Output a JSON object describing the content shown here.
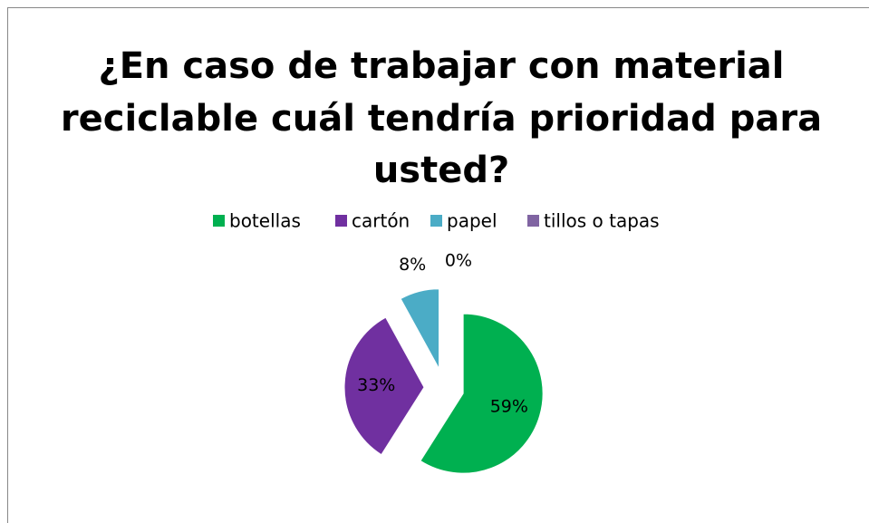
{
  "chart_data": {
    "type": "pie",
    "title": "¿En caso de trabajar con material reciclable cuál tendría prioridad para usted?",
    "title_lines": [
      "¿En caso de trabajar con material",
      "reciclable cuál tendría prioridad para",
      "usted?"
    ],
    "categories": [
      "botellas",
      "cartón",
      "papel",
      "tillos o tapas"
    ],
    "values": [
      59,
      33,
      8,
      0
    ],
    "value_labels": [
      "59%",
      "33%",
      "8%",
      "0%"
    ],
    "colors": [
      "#00b050",
      "#7030a0",
      "#4bacc6",
      "#8064a2"
    ],
    "legend": "top",
    "exploded": true
  }
}
